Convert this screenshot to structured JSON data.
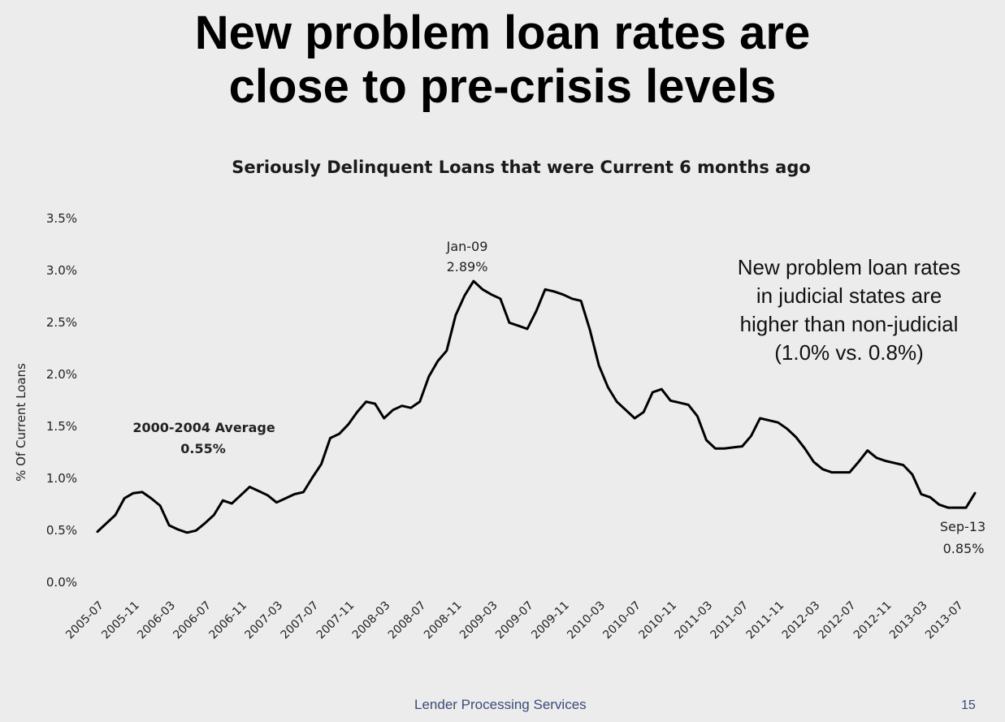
{
  "slide": {
    "title_line1": "New problem loan rates are",
    "title_line2": "close to pre-crisis levels",
    "callout_line1": "New problem loan rates",
    "callout_line2": "in judicial states are",
    "callout_line3": "higher than non-judicial",
    "callout_line4": "(1.0% vs. 0.8%)",
    "footer": "Lender Processing Services",
    "page_number": "15"
  },
  "chart_data": {
    "type": "line",
    "title": "Seriously Delinquent Loans that were Current 6 months ago",
    "xlabel": "",
    "ylabel": "% Of Current Loans",
    "ylim": [
      0,
      3.5
    ],
    "yticks": [
      "0.0%",
      "0.5%",
      "1.0%",
      "1.5%",
      "2.0%",
      "2.5%",
      "3.0%",
      "3.5%"
    ],
    "xticks": [
      "2005-07",
      "2005-11",
      "2006-03",
      "2006-07",
      "2006-11",
      "2007-03",
      "2007-07",
      "2007-11",
      "2008-03",
      "2008-07",
      "2008-11",
      "2009-03",
      "2009-07",
      "2009-11",
      "2010-03",
      "2010-07",
      "2010-11",
      "2011-03",
      "2011-07",
      "2011-11",
      "2012-03",
      "2012-07",
      "2012-11",
      "2013-03",
      "2013-07"
    ],
    "series": [
      {
        "x_start": "2005-07",
        "x_end": "2013-09",
        "values": [
          0.48,
          0.56,
          0.64,
          0.8,
          0.85,
          0.86,
          0.8,
          0.73,
          0.54,
          0.5,
          0.47,
          0.49,
          0.56,
          0.64,
          0.78,
          0.75,
          0.83,
          0.91,
          0.87,
          0.83,
          0.76,
          0.8,
          0.84,
          0.86,
          1.0,
          1.13,
          1.38,
          1.42,
          1.51,
          1.63,
          1.73,
          1.71,
          1.57,
          1.65,
          1.69,
          1.67,
          1.73,
          1.97,
          2.12,
          2.22,
          2.56,
          2.75,
          2.89,
          2.81,
          2.76,
          2.72,
          2.49,
          2.46,
          2.43,
          2.6,
          2.81,
          2.79,
          2.76,
          2.72,
          2.7,
          2.42,
          2.08,
          1.87,
          1.73,
          1.65,
          1.57,
          1.63,
          1.82,
          1.85,
          1.74,
          1.72,
          1.7,
          1.59,
          1.36,
          1.28,
          1.28,
          1.29,
          1.3,
          1.4,
          1.57,
          1.55,
          1.53,
          1.47,
          1.39,
          1.28,
          1.15,
          1.08,
          1.05,
          1.05,
          1.05,
          1.15,
          1.26,
          1.19,
          1.16,
          1.14,
          1.12,
          1.03,
          0.84,
          0.81,
          0.74,
          0.71,
          0.71,
          0.71,
          0.85
        ]
      }
    ],
    "annotations": {
      "peak_date": "Jan-09",
      "peak_value": "2.89%",
      "end_date": "Sep-13",
      "end_value": "0.85%",
      "avg_label": "2000-2004 Average",
      "avg_value": "0.55%"
    },
    "grid": false,
    "legend": "none"
  }
}
